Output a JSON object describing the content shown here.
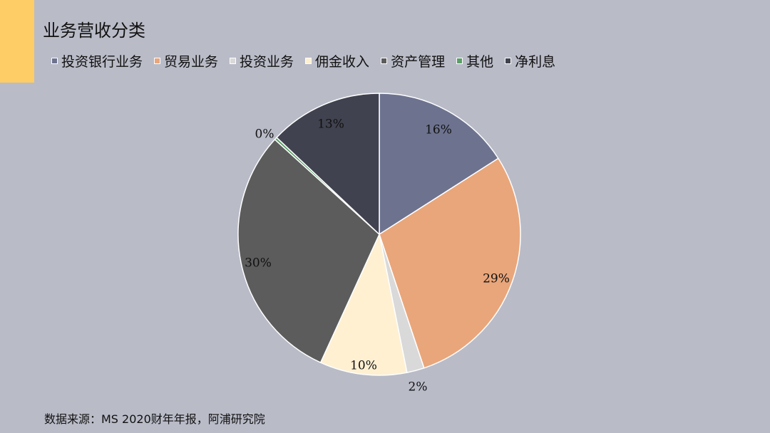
{
  "page": {
    "title": "业务营收分类",
    "source": "数据来源：MS 2020财年年报，阿浦研究院"
  },
  "colors": {
    "background": "#b9bbc7",
    "accent": "#ffcd66"
  },
  "chart_data": {
    "type": "pie",
    "title": "",
    "legend_position": "top",
    "slices": [
      {
        "name": "投资银行业务",
        "value": 16,
        "label": "16%",
        "color": "#6d738f"
      },
      {
        "name": "贸易业务",
        "value": 29,
        "label": "29%",
        "color": "#e9a67a"
      },
      {
        "name": "投资业务",
        "value": 2,
        "label": "2%",
        "color": "#d9d9d9"
      },
      {
        "name": "佣金收入",
        "value": 10,
        "label": "10%",
        "color": "#fff0d2"
      },
      {
        "name": "资产管理",
        "value": 30,
        "label": "30%",
        "color": "#5c5c5c"
      },
      {
        "name": "其他",
        "value": 0.3,
        "label": "0%",
        "color": "#5a9f68"
      },
      {
        "name": "净利息",
        "value": 13,
        "label": "13%",
        "color": "#40424f"
      }
    ]
  }
}
